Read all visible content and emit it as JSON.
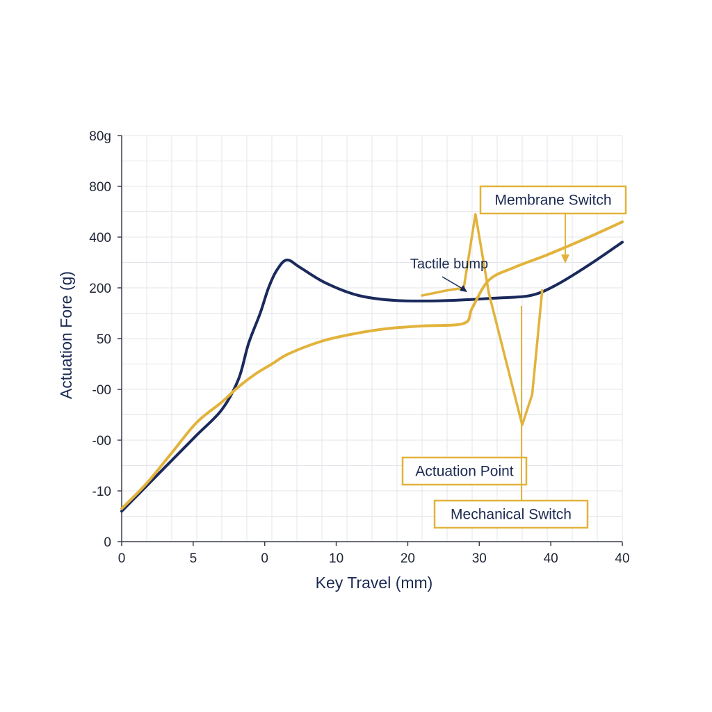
{
  "chart_data": {
    "type": "line",
    "title": "",
    "xlabel": "Key Travel (mm)",
    "ylabel": "Actuation Fore (g)",
    "x_tick_labels": [
      "0",
      "5",
      "0",
      "10",
      "20",
      "30",
      "40",
      "40"
    ],
    "y_tick_labels": [
      "0",
      "-10",
      "-00",
      "-00",
      "50",
      "200",
      "400",
      "800",
      "80g"
    ],
    "grid": true,
    "series": [
      {
        "name": "Mechanical Switch",
        "color": "#1b2a5c",
        "points": [
          [
            0.0,
            0.6
          ],
          [
            1.5,
            1.1
          ],
          [
            3.0,
            1.6
          ],
          [
            4.5,
            2.1
          ],
          [
            6.0,
            2.6
          ],
          [
            7.0,
            3.2
          ],
          [
            7.6,
            3.9
          ],
          [
            8.3,
            4.5
          ],
          [
            8.8,
            5.0
          ],
          [
            9.3,
            5.35
          ],
          [
            9.9,
            5.55
          ],
          [
            10.7,
            5.4
          ],
          [
            12.2,
            5.1
          ],
          [
            14.2,
            4.85
          ],
          [
            16.5,
            4.75
          ],
          [
            19.5,
            4.75
          ],
          [
            22.5,
            4.8
          ],
          [
            24.5,
            4.85
          ],
          [
            26.0,
            5.05
          ],
          [
            28.0,
            5.45
          ],
          [
            30.0,
            5.9
          ]
        ],
        "annotation_label": "Mechanical Switch"
      },
      {
        "name": "Membrane Switch",
        "color": "#e2b33c",
        "points": [
          [
            0.0,
            0.65
          ],
          [
            1.5,
            1.15
          ],
          [
            3.0,
            1.75
          ],
          [
            4.5,
            2.35
          ],
          [
            6.0,
            2.75
          ],
          [
            7.0,
            3.05
          ],
          [
            8.0,
            3.3
          ],
          [
            9.0,
            3.5
          ],
          [
            10.0,
            3.7
          ],
          [
            12.0,
            3.95
          ],
          [
            14.0,
            4.1
          ],
          [
            16.0,
            4.2
          ],
          [
            18.0,
            4.25
          ],
          [
            20.5,
            4.3
          ],
          [
            21.0,
            4.6
          ],
          [
            22.0,
            5.15
          ],
          [
            23.5,
            5.4
          ],
          [
            25.5,
            5.65
          ],
          [
            28.0,
            6.0
          ],
          [
            30.0,
            6.3
          ]
        ],
        "annotation_label": "Membrane Switch"
      },
      {
        "name": "Actuation Point",
        "color": "#e2b33c",
        "points": [
          [
            18.0,
            4.85
          ],
          [
            19.5,
            4.95
          ],
          [
            20.5,
            5.0
          ],
          [
            21.2,
            6.45
          ],
          [
            22.0,
            4.9
          ],
          [
            24.0,
            2.3
          ],
          [
            24.6,
            2.9
          ],
          [
            25.2,
            4.95
          ]
        ],
        "annotation_label": "Actuation Point"
      }
    ],
    "annotations": [
      "Tactile bump",
      "Actuation Point",
      "Mechanical Switch",
      "Membrane Switch"
    ]
  }
}
